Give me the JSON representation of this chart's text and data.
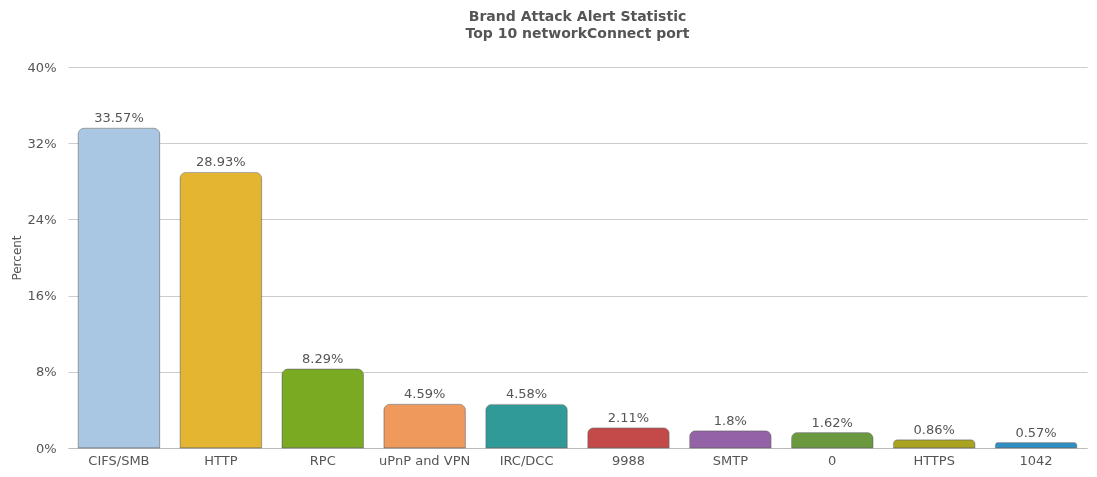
{
  "chart_data": {
    "type": "bar",
    "title": "Brand Attack Alert Statistic",
    "subtitle": "Top 10 networkConnect port",
    "ylabel": "Percent",
    "categories": [
      "CIFS/SMB",
      "HTTP",
      "RPC",
      "uPnP and VPN",
      "IRC/DCC",
      "9988",
      "SMTP",
      "0",
      "HTTPS",
      "1042"
    ],
    "values": [
      33.57,
      28.93,
      8.29,
      4.59,
      4.58,
      2.11,
      1.8,
      1.62,
      0.86,
      0.57
    ],
    "value_labels": [
      "33.57%",
      "28.93%",
      "8.29%",
      "4.59%",
      "4.58%",
      "2.11%",
      "1.8%",
      "1.62%",
      "0.86%",
      "0.57%"
    ],
    "colors": [
      "#a9c6e2",
      "#e3b530",
      "#7aa922",
      "#ef9a5c",
      "#2f9a98",
      "#c44a4a",
      "#9462a6",
      "#6a9940",
      "#a9a320",
      "#2f8fc2"
    ],
    "ylim": [
      0,
      40
    ],
    "yticks": [
      {
        "value": 0,
        "label": "0%"
      },
      {
        "value": 8,
        "label": "8%"
      },
      {
        "value": 16,
        "label": "16%"
      },
      {
        "value": 24,
        "label": "24%"
      },
      {
        "value": 32,
        "label": "32%"
      },
      {
        "value": 40,
        "label": "40%"
      }
    ],
    "grid": "y"
  }
}
